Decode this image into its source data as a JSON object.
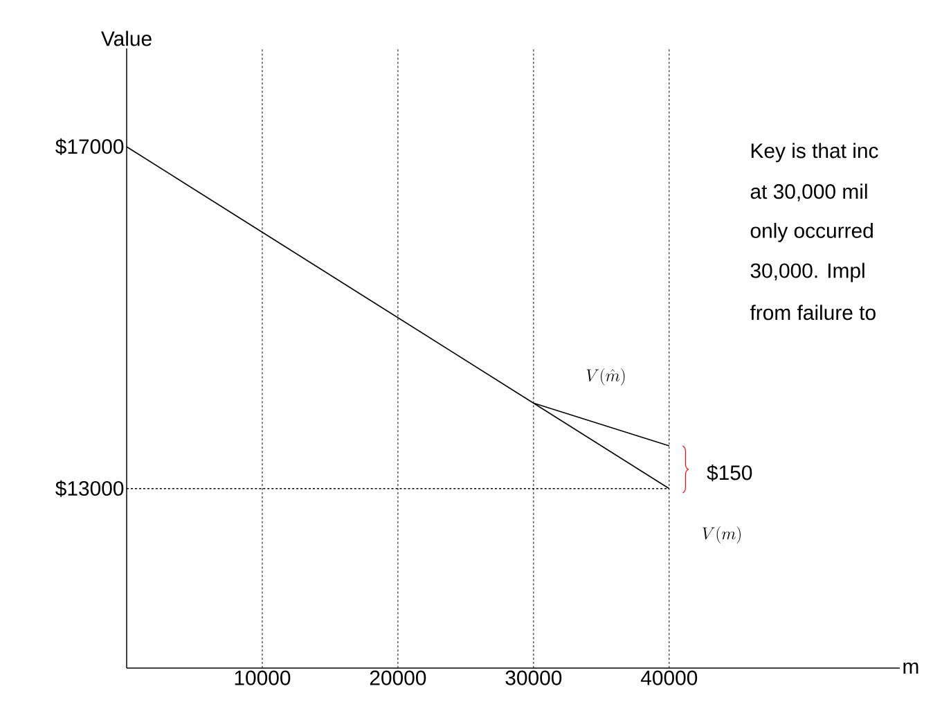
{
  "chart_data": {
    "type": "line",
    "xlabel": "m",
    "ylabel": "Value",
    "x": [
      0,
      40000
    ],
    "series": [
      {
        "color": "#000000",
        "values": [
          17000,
          13000
        ]
      },
      {
        "color": "#000000",
        "x": [
          30000,
          40000
        ],
        "values": [
          14000,
          13500
        ]
      },
      {
        "color": "#000000",
        "values": [
          13000,
          13000
        ],
        "line_style": "dashed"
      }
    ],
    "xlim": [
      0,
      57000
    ],
    "ylim": [
      10900,
      18150
    ],
    "xticks": [
      10000,
      20000,
      30000,
      40000
    ],
    "yticks": [
      {
        "value": 13000,
        "label": "$13000"
      },
      {
        "value": 17000,
        "label": "$17000"
      }
    ],
    "grid": "x",
    "marker": "none",
    "line_style": "solid",
    "annotations": [
      "V(\\hat{m})",
      "V(m)",
      "$150",
      "Key is that inc",
      "at 30,000 mil",
      "only occurred",
      "30,000.  Impl",
      "from failure to"
    ]
  }
}
